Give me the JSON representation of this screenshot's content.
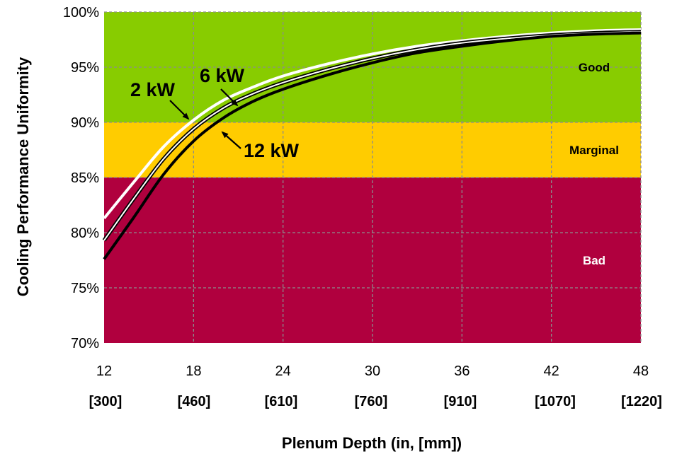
{
  "chart_data": {
    "type": "line",
    "xlabel": "Plenum Depth (in, [mm])",
    "ylabel": "Cooling Performance Uniformity",
    "xlim": [
      12,
      48
    ],
    "ylim": [
      70,
      100
    ],
    "x_ticks": [
      "12",
      "18",
      "24",
      "30",
      "36",
      "42",
      "48"
    ],
    "x_ticks_secondary": [
      "[300]",
      "[460]",
      "[610]",
      "[760]",
      "[910]",
      "[1070]",
      "[1220]"
    ],
    "y_ticks": [
      "70%",
      "75%",
      "80%",
      "85%",
      "90%",
      "95%",
      "100%"
    ],
    "grid": true,
    "zones": [
      {
        "label": "Bad",
        "range": [
          70,
          85
        ],
        "color": "#b0003e",
        "label_color": "#ffffff"
      },
      {
        "label": "Marginal",
        "range": [
          85,
          90
        ],
        "color": "#ffcc00",
        "label_color": "#000000"
      },
      {
        "label": "Good",
        "range": [
          90,
          100
        ],
        "color": "#88cc00",
        "label_color": "#000000"
      }
    ],
    "x": [
      12,
      14,
      16,
      18,
      20,
      22,
      24,
      27,
      30,
      33,
      36,
      39,
      42,
      45,
      48
    ],
    "series": [
      {
        "name": "2 kW",
        "color": "#ffffff",
        "values": [
          81.3,
          84.6,
          87.8,
          90.2,
          92.0,
          93.2,
          94.2,
          95.3,
          96.2,
          96.9,
          97.4,
          97.8,
          98.1,
          98.3,
          98.4
        ]
      },
      {
        "name": "6 kW",
        "color": "#ffffff",
        "outline": "#000000",
        "values": [
          79.3,
          83.1,
          86.7,
          89.4,
          91.3,
          92.6,
          93.6,
          94.8,
          95.8,
          96.6,
          97.2,
          97.6,
          97.9,
          98.1,
          98.2
        ]
      },
      {
        "name": "12 kW",
        "color": "#000000",
        "values": [
          77.6,
          81.4,
          85.3,
          88.3,
          90.4,
          91.9,
          93.0,
          94.3,
          95.4,
          96.3,
          96.9,
          97.4,
          97.8,
          98.0,
          98.1
        ]
      }
    ]
  }
}
